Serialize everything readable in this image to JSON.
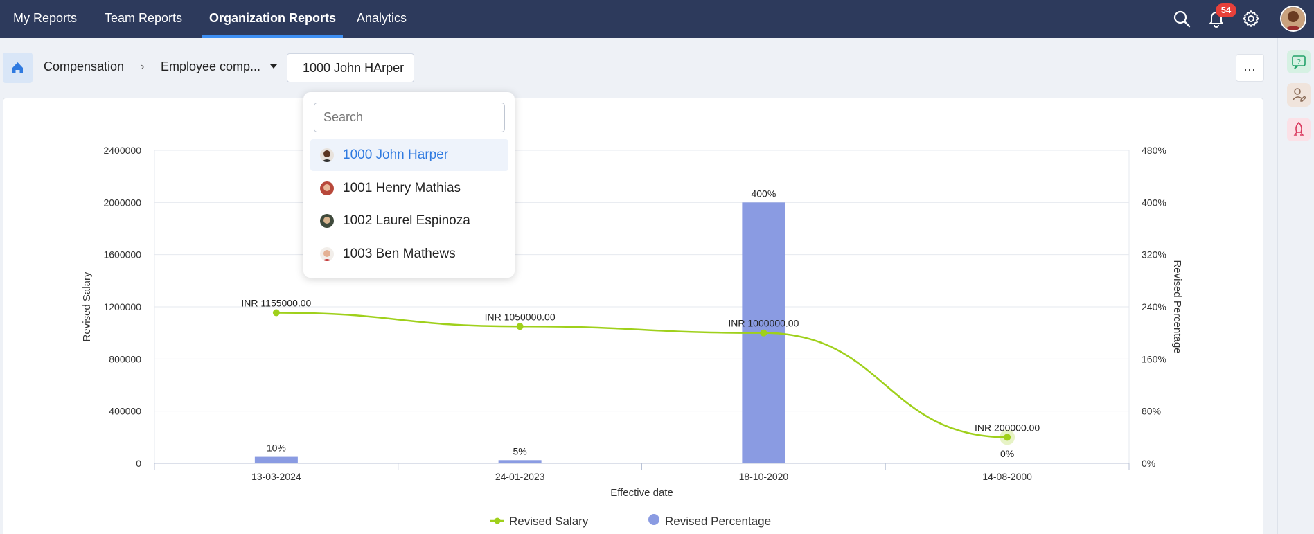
{
  "nav": {
    "tabs": [
      {
        "label": "My Reports"
      },
      {
        "label": "Team Reports"
      },
      {
        "label": "Organization Reports"
      },
      {
        "label": "Analytics"
      }
    ],
    "active_tab": "Organization Reports",
    "notification_count": "54",
    "icons": [
      "search-icon",
      "bell-icon",
      "gear-icon",
      "user-avatar"
    ]
  },
  "breadcrumb": {
    "home_icon": "home-icon",
    "module": "Compensation",
    "report": "Employee comp...",
    "employee": "1000 John HArper"
  },
  "more_button": "...",
  "right_rail": [
    "help-icon",
    "user-edit-icon",
    "rocket-icon"
  ],
  "dropdown": {
    "search_placeholder": "Search",
    "items": [
      {
        "label": "1000 John Harper",
        "selected": true
      },
      {
        "label": "1001 Henry Mathias",
        "selected": false
      },
      {
        "label": "1002 Laurel Espinoza",
        "selected": false
      },
      {
        "label": "1003 Ben Mathews",
        "selected": false
      }
    ]
  },
  "colors": {
    "nav_bg": "#2d3a5c",
    "accent": "#3d8ef2",
    "line": "#9fd01b",
    "bar": "#8a9be2"
  },
  "chart_data": {
    "type": "bar",
    "categories": [
      "13-03-2024",
      "24-01-2023",
      "18-10-2020",
      "14-08-2000"
    ],
    "xlabel": "Effective date",
    "ylabel": "Revised Salary",
    "y2label": "Revised Percentage",
    "ylim": [
      0,
      2400000
    ],
    "y2lim": [
      0,
      480
    ],
    "y_ticks": [
      "0",
      "400000",
      "800000",
      "1200000",
      "1600000",
      "2000000",
      "2400000"
    ],
    "y2_ticks": [
      "0%",
      "80%",
      "160%",
      "240%",
      "320%",
      "400%",
      "480%"
    ],
    "series": [
      {
        "name": "Revised Salary",
        "type": "line",
        "axis": "left",
        "values": [
          1155000,
          1050000,
          1000000,
          200000
        ],
        "labels": [
          "INR 1155000.00",
          "INR 1050000.00",
          "INR 1000000.00",
          "INR 200000.00"
        ]
      },
      {
        "name": "Revised Percentage",
        "type": "bar",
        "axis": "right",
        "values": [
          10,
          5,
          400,
          0
        ],
        "labels": [
          "10%",
          "5%",
          "400%",
          "0%"
        ]
      }
    ],
    "legend": "bottom-center",
    "grid": true
  }
}
